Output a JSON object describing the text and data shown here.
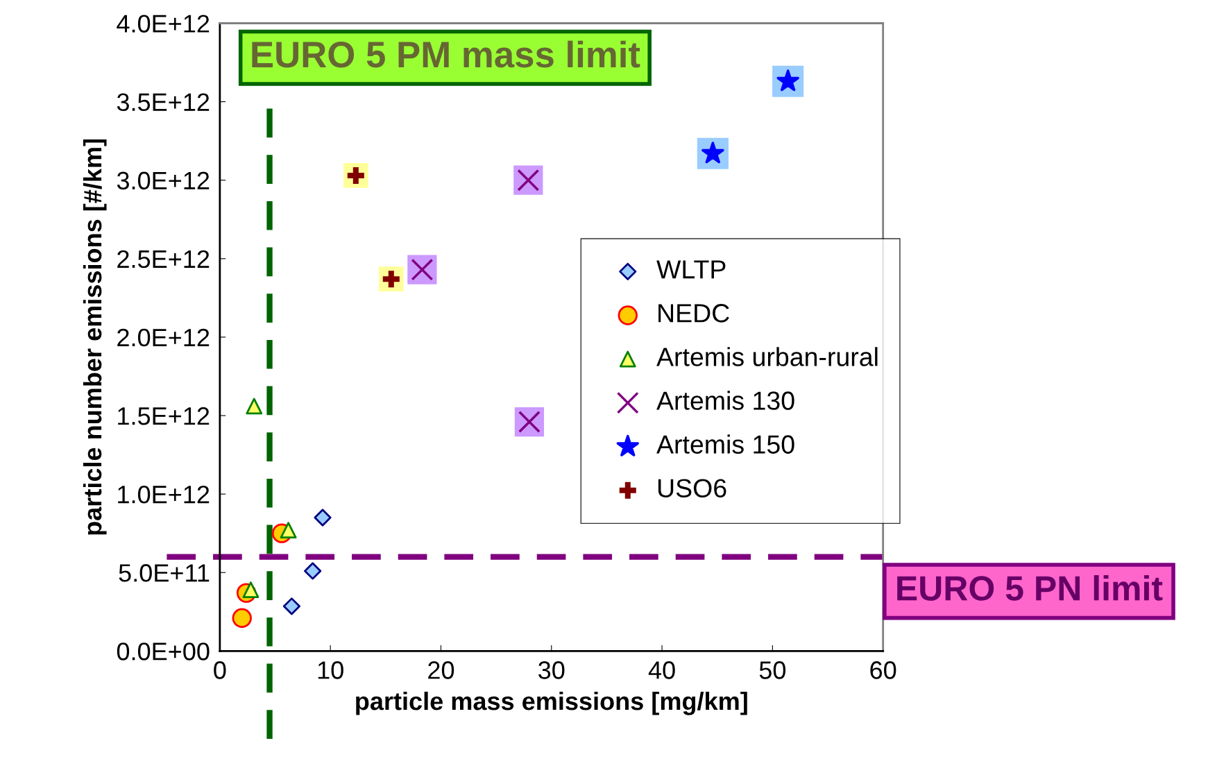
{
  "chart_data": {
    "type": "scatter",
    "xlabel": "particle mass emissions [mg/km]",
    "ylabel": "particle number emissions [#/km]",
    "xlim": [
      0,
      60
    ],
    "xticks": [
      0,
      10,
      20,
      30,
      40,
      50,
      60
    ],
    "ylim": [
      0,
      4000000000000.0
    ],
    "yticks": [
      {
        "value": 0,
        "label": "0.0E+00"
      },
      {
        "value": 500000000000.0,
        "label": "5.0E+11"
      },
      {
        "value": 1000000000000.0,
        "label": "1.0E+12"
      },
      {
        "value": 1500000000000.0,
        "label": "1.5E+12"
      },
      {
        "value": 2000000000000.0,
        "label": "2.0E+12"
      },
      {
        "value": 2500000000000.0,
        "label": "2.5E+12"
      },
      {
        "value": 3000000000000.0,
        "label": "3.0E+12"
      },
      {
        "value": 3500000000000.0,
        "label": "3.5E+12"
      },
      {
        "value": 4000000000000.0,
        "label": "4.0E+12"
      }
    ],
    "grid": false,
    "legend": "center right",
    "series": [
      {
        "name": "WLTP",
        "color": "#99ccff",
        "marker": "diamond",
        "x": [
          9.3,
          8.4,
          6.5
        ],
        "values": [
          850000000000.0,
          510000000000.0,
          285000000000.0
        ]
      },
      {
        "name": "NEDC",
        "color": "#ffcc00",
        "marker": "circle",
        "x": [
          2.0,
          2.4,
          5.6
        ],
        "values": [
          210000000000.0,
          370000000000.0,
          750000000000.0
        ]
      },
      {
        "name": "Artemis urban-rural",
        "color": "#ffff66",
        "marker": "triangle",
        "x": [
          3.1,
          6.2,
          2.8
        ],
        "values": [
          1560000000000.0,
          770000000000.0,
          390000000000.0
        ]
      },
      {
        "name": "Artemis 130",
        "color": "#800080",
        "marker": "cross",
        "x": [
          27.9,
          18.3,
          28.0
        ],
        "values": [
          3000000000000.0,
          2430000000000.0,
          1460000000000.0
        ]
      },
      {
        "name": "Artemis 150",
        "color": "#0000ff",
        "marker": "star",
        "x": [
          51.4,
          44.6
        ],
        "values": [
          3630000000000.0,
          3170000000000.0
        ]
      },
      {
        "name": "USO6",
        "color": "#800000",
        "x": [
          12.3,
          15.5
        ],
        "values": [
          3030000000000.0,
          2370000000000.0
        ]
      }
    ],
    "ref_lines": [
      {
        "axis": "x",
        "value": 4.5,
        "label": "EURO 5 PM mass limit",
        "color": "#006400",
        "line_style": "dashed"
      },
      {
        "axis": "y",
        "value": 600000000000.0,
        "label": "EURO 5 PN limit",
        "color": "#800080",
        "line_style": "dashed"
      }
    ]
  }
}
